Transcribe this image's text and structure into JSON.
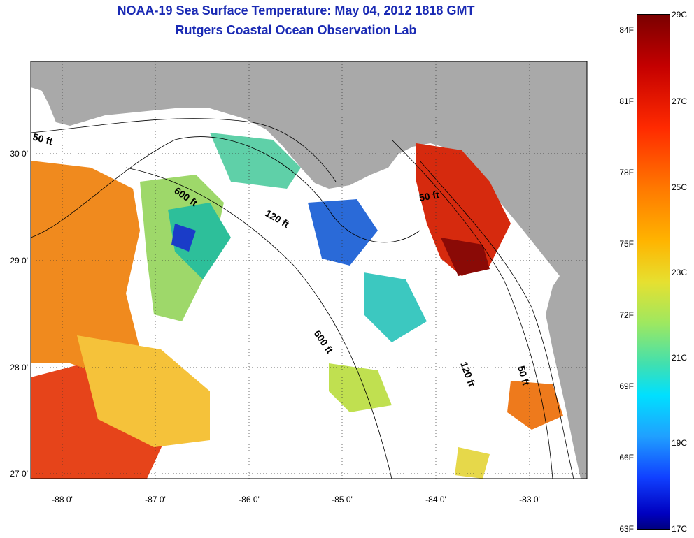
{
  "title": {
    "line1": "NOAA-19 Sea Surface Temperature:  May 04, 2012 1818 GMT",
    "line2": "Rutgers Coastal Ocean Observation Lab"
  },
  "map": {
    "x_ticks": [
      "-88 0'",
      "-87 0'",
      "-86 0'",
      "-85 0'",
      "-84 0'",
      "-83 0'"
    ],
    "y_ticks": [
      "30 0'",
      "29 0'",
      "28 0'",
      "27 0'"
    ],
    "contour_labels": [
      "50 ft",
      "600 ft",
      "120 ft",
      "50 ft",
      "600 ft",
      "120 ft",
      "50 ft"
    ],
    "colors": {
      "land": "#a9a9a9",
      "ocean_nodata": "#ffffff"
    }
  },
  "colorbar": {
    "fahrenheit": [
      "84F",
      "81F",
      "78F",
      "75F",
      "72F",
      "69F",
      "66F",
      "63F"
    ],
    "celsius": [
      "29C",
      "27C",
      "25C",
      "23C",
      "21C",
      "19C",
      "17C"
    ]
  }
}
